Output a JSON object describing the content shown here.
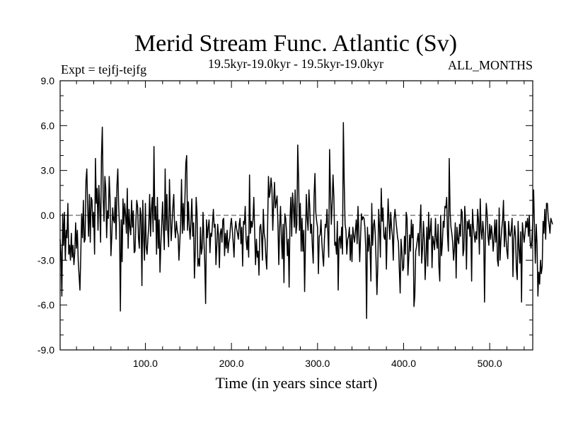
{
  "chart_data": {
    "type": "line",
    "title": "Merid Stream Func. Atlantic (Sv)",
    "subtitle": "19.5kyr-19.0kyr - 19.5kyr-19.0kyr",
    "expt_label": "Expt = tejfj-tejfg",
    "period_label": "ALL_MONTHS",
    "xlabel": "Time (in years since start)",
    "ylabel": "",
    "xlim": [
      1,
      550
    ],
    "ylim": [
      -9.0,
      9.0
    ],
    "x_ticks": [
      100,
      200,
      300,
      400,
      500
    ],
    "x_tick_labels": [
      "100.0",
      "200.0",
      "300.0",
      "400.0",
      "500.0"
    ],
    "y_ticks": [
      9,
      6,
      3,
      0,
      -3,
      -6,
      -9
    ],
    "y_tick_labels": [
      "9.0",
      "6.0",
      "3.0",
      "0.0",
      "-3.0",
      "-6.0",
      "-9.0"
    ],
    "reference_line": 0,
    "series": [
      {
        "name": "tejfj-tejfg",
        "x_start": 1,
        "x_step": 1,
        "values": [
          -1.6,
          -2.5,
          -5.4,
          0.1,
          -2.0,
          0.2,
          -3.0,
          -1.0,
          -1.5,
          0.8,
          -2.6,
          -2.0,
          -3.0,
          -1.2,
          -2.8,
          -2.0,
          -3.3,
          -2.5,
          -0.5,
          -2.2,
          -1.0,
          -3.0,
          -4.0,
          -5.0,
          -2.6,
          0.1,
          -1.5,
          1.0,
          -1.8,
          -1.6,
          2.3,
          3.1,
          0.5,
          -1.4,
          1.4,
          -1.8,
          1.2,
          1.0,
          -0.8,
          0.2,
          -2.6,
          3.8,
          0.8,
          1.8,
          -1.0,
          2.0,
          0.6,
          -1.8,
          3.9,
          5.9,
          1.2,
          -0.4,
          2.6,
          1.8,
          -1.5,
          0.3,
          -0.2,
          2.6,
          1.1,
          -2.7,
          -1.4,
          0.5,
          -0.3,
          -0.5,
          1.2,
          -1.6,
          2.0,
          3.1,
          0.6,
          -0.8,
          -6.4,
          -0.3,
          -3.1,
          1.1,
          -0.6,
          0.8,
          0.0,
          -1.2,
          1.8,
          -2.2,
          0.4,
          -0.8,
          -1.3,
          1.0,
          -0.8,
          0.3,
          -2.5,
          -2.4,
          -0.4,
          1.0,
          0.6,
          -1.5,
          -2.2,
          0.5,
          0.0,
          -4.7,
          1.0,
          -1.5,
          -3.0,
          0.8,
          -2.1,
          -2.6,
          -1.5,
          -0.6,
          1.4,
          -1.4,
          0.4,
          1.2,
          -1.1,
          4.6,
          -0.3,
          0.6,
          -2.6,
          1.2,
          -2.2,
          -0.3,
          -3.8,
          -1.9,
          -0.6,
          0.9,
          -0.9,
          -2.3,
          3.1,
          -1.0,
          1.4,
          -1.0,
          -2.1,
          2.4,
          0.1,
          -1.7,
          -0.6,
          0.6,
          1.4,
          -0.8,
          -1.5,
          -0.4,
          -1.0,
          -1.3,
          -3.0,
          -1.8,
          -0.6,
          2.4,
          -1.2,
          0.8,
          -1.0,
          1.2,
          3.5,
          4.0,
          -1.0,
          0.9,
          -0.7,
          -1.6,
          -0.3,
          1.1,
          -1.4,
          -0.5,
          -4.2,
          -2.4,
          1.2,
          0.2,
          -3.4,
          -2.9,
          -3.4,
          -0.8,
          -2.6,
          -2.2,
          0.2,
          -1.6,
          -3.2,
          -5.9,
          -0.3,
          -1.5,
          -0.8,
          -0.3,
          -2.5,
          -1.2,
          -1.4,
          -0.5,
          0.4,
          -0.8,
          -0.6,
          -3.3,
          -2.0,
          -0.6,
          -1.4,
          -3.5,
          -1.2,
          -0.9,
          -1.8,
          -0.3,
          -0.2,
          -2.7,
          -1.2,
          -2.2,
          -1.0,
          -2.5,
          -1.8,
          -1.5,
          -0.6,
          -0.2,
          -1.0,
          -1.8,
          -2.8,
          -1.0,
          -0.4,
          -0.9,
          -1.2,
          -1.6,
          -0.6,
          -0.2,
          -1.9,
          -0.8,
          -3.4,
          -0.4,
          -0.6,
          0.6,
          -1.6,
          -2.3,
          -1.4,
          -2.8,
          2.7,
          -1.2,
          -0.4,
          -0.8,
          -0.3,
          1.2,
          -1.2,
          -3.3,
          -1.6,
          -2.8,
          -2.4,
          -4.0,
          -0.8,
          -0.6,
          -1.4,
          -3.0,
          0.4,
          -1.2,
          -1.6,
          -2.8,
          -3.6,
          -0.8,
          2.6,
          1.2,
          1.6,
          2.5,
          1.8,
          -1.0,
          0.8,
          2.2,
          0.5,
          0.9,
          1.3,
          -0.6,
          -3.3,
          -0.8,
          0.6,
          -1.4,
          -2.9,
          -0.6,
          -4.5,
          0.1,
          -0.2,
          -1.1,
          -2.7,
          -1.6,
          -4.8,
          -0.3,
          1.2,
          -1.4,
          1.5,
          0.6,
          -0.8,
          1.7,
          -1.2,
          -0.6,
          4.7,
          2.4,
          -1.0,
          0.8,
          -2.4,
          -0.2,
          -2.4,
          -1.0,
          -5.1,
          -1.7,
          1.4,
          -0.2,
          -1.0,
          1.7,
          0.5,
          -1.2,
          -0.6,
          -2.1,
          -3.2,
          1.3,
          2.8,
          0.2,
          -0.4,
          -0.8,
          -3.9,
          -1.4,
          -1.3,
          -0.3,
          -1.8,
          -2.7,
          -3.4,
          -1.6,
          -0.6,
          -0.8,
          0.4,
          -1.2,
          -2.8,
          4.4,
          1.6,
          -0.6,
          0.8,
          2.7,
          1.2,
          -2.0,
          -1.8,
          -2.6,
          -0.4,
          -5.0,
          -1.6,
          -1.4,
          -2.2,
          -0.8,
          -2.6,
          6.2,
          2.2,
          -0.6,
          -1.0,
          -2.6,
          -1.6,
          -1.4,
          -0.8,
          -3.0,
          -1.3,
          -3.1,
          -0.8,
          -1.4,
          -1.8,
          -1.0,
          -0.3,
          -1.9,
          0.6,
          -1.2,
          -3.1,
          -1.4,
          0.1,
          -0.3,
          -0.1,
          -0.2,
          -0.8,
          -2.2,
          -6.9,
          -0.8,
          -2.4,
          -1.3,
          -2.2,
          -4.4,
          0.8,
          -2.0,
          -0.7,
          -0.3,
          -1.2,
          -3.1,
          -5.3,
          -3.4,
          0.4,
          -0.8,
          -2.8,
          1.8,
          -0.4,
          0.5,
          -1.4,
          -1.6,
          -0.8,
          -3.6,
          -1.0,
          1.1,
          -0.4,
          -1.6,
          0.2,
          -0.8,
          -1.4,
          -3.0,
          -0.2,
          0.4,
          -0.3,
          -0.9,
          -1.5,
          -1.8,
          -3.6,
          -5.2,
          -1.6,
          -2.4,
          -3.7,
          -3.5,
          -1.4,
          -2.6,
          0.2,
          -0.2,
          -4.0,
          -2.8,
          -1.3,
          -2.4,
          -0.3,
          -1.5,
          -0.6,
          -6.1,
          -5.4,
          -2.4,
          -2.1,
          -1.6,
          -1.2,
          -2.7,
          -0.6,
          0.7,
          -3.2,
          -2.2,
          -0.4,
          -1.6,
          -4.3,
          -2.7,
          -0.8,
          -3.4,
          0.2,
          -1.6,
          -1.0,
          -0.2,
          -3.5,
          -1.4,
          -1.8,
          -2.3,
          -0.2,
          -1.6,
          -2.2,
          -0.6,
          -3.4,
          -4.4,
          0.0,
          -2.7,
          -1.9,
          -0.4,
          -0.8,
          0.6,
          0.5,
          1.2,
          -1.3,
          -2.4,
          3.8,
          0.2,
          -0.8,
          -1.2,
          -1.8,
          -3.0,
          -2.2,
          -0.5,
          -4.2,
          -0.8,
          -1.6,
          -1.9,
          -0.6,
          -1.4,
          0.4,
          0.2,
          -2.7,
          -2.3,
          0.6,
          -0.4,
          -3.6,
          -0.4,
          -0.9,
          -0.3,
          -1.4,
          -0.6,
          -4.4,
          0.4,
          -0.7,
          -1.3,
          -1.8,
          -1.1,
          -1.6,
          0.4,
          -0.4,
          -2.6,
          1.1,
          -1.0,
          -1.6,
          -0.4,
          -1.2,
          -5.8,
          -1.4,
          0.8,
          0.1,
          -1.4,
          -2.0,
          -0.6,
          -1.6,
          -0.7,
          -1.3,
          -2.4,
          -1.6,
          -0.3,
          -1.8,
          -0.3,
          -3.0,
          -3.4,
          0.5,
          -3.0,
          -1.7,
          -0.9,
          -0.3,
          1.0,
          -2.1,
          -0.4,
          -1.6,
          -2.4,
          -2.9,
          -0.4,
          -1.3,
          -1.4,
          -1.0,
          -0.2,
          -4.1,
          -1.6,
          -0.7,
          -1.4,
          -3.6,
          -4.3,
          -0.4,
          -2.2,
          -3.2,
          -1.1,
          -5.8,
          -0.5,
          -1.2,
          -1.8,
          -1.2,
          -0.4,
          -0.8,
          -0.2,
          -1.4,
          0.0,
          -1.8,
          -2.2,
          -1.6,
          -0.4,
          1.7,
          -0.8,
          -3.2,
          -0.6,
          -1.9,
          -5.4,
          -3.8,
          -4.6,
          -3.0,
          -3.9,
          -3.4,
          -0.4,
          -1.2,
          0.4,
          -1.6,
          0.8,
          0.8,
          -0.2,
          -0.6,
          -1.2,
          -0.2,
          -0.4,
          -0.6
        ]
      }
    ]
  }
}
